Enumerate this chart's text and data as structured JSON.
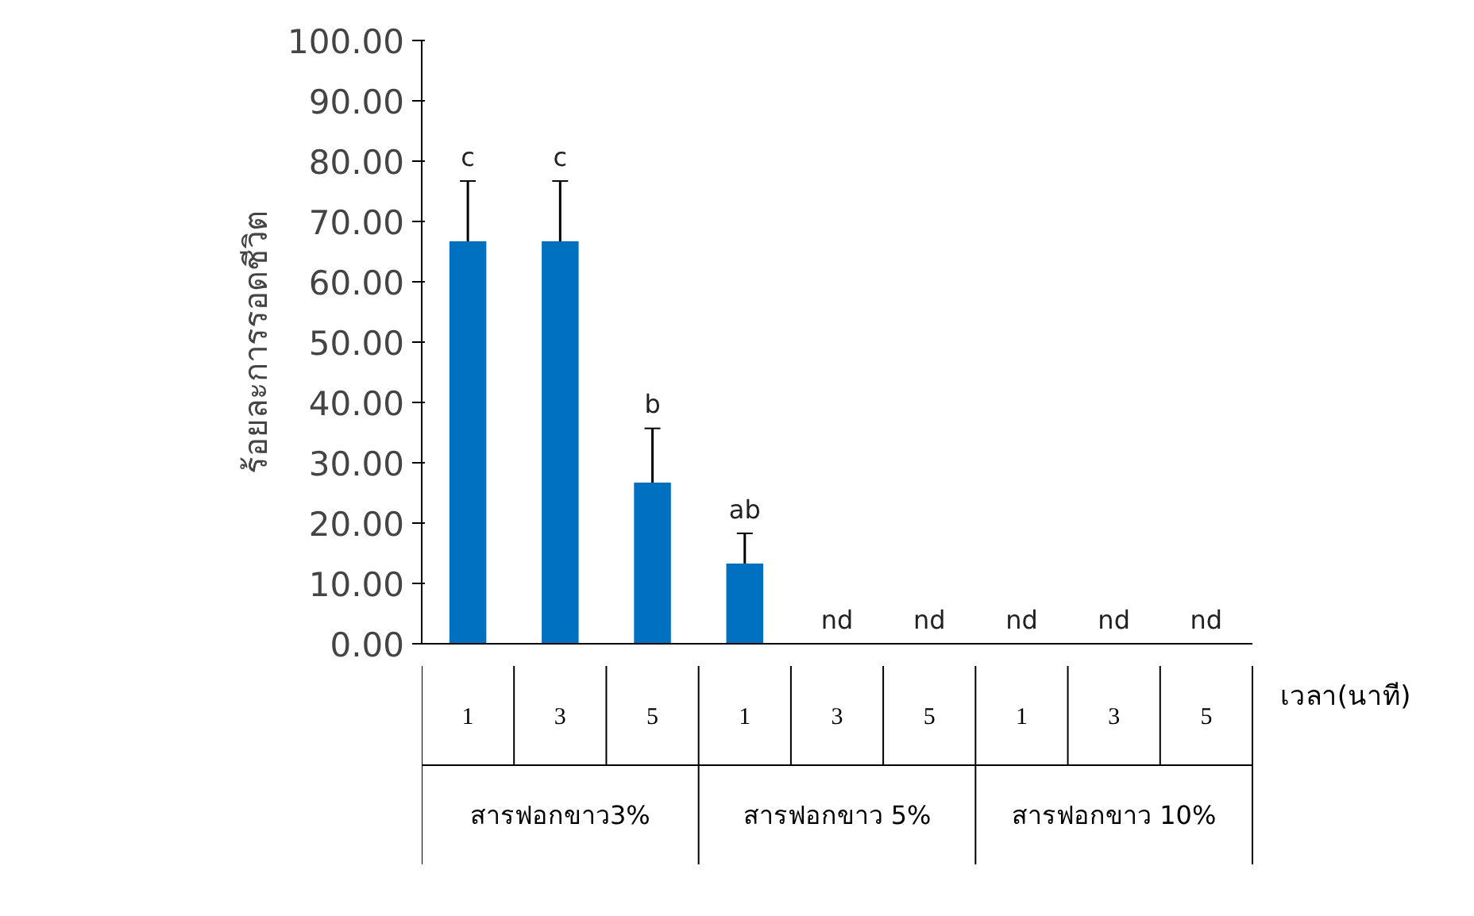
{
  "chart_data": {
    "type": "bar",
    "xlabel": "เวลา(นาที)",
    "ylabel": "ร้อยละการรอดชีวิต",
    "categories": [
      "1",
      "3",
      "5",
      "1",
      "3",
      "5",
      "1",
      "3",
      "5"
    ],
    "annotations": [
      "สารฟอกขาว3%",
      "สารฟอกขาว 5%",
      "สารฟอกขาว 10%"
    ],
    "series": [
      {
        "color": "#0070c0",
        "values": [
          66.7,
          66.7,
          26.7,
          13.3,
          null,
          null,
          null,
          null,
          null
        ],
        "errors": [
          10,
          10,
          9,
          5,
          null,
          null,
          null,
          null,
          null
        ],
        "value_labels": [
          "c",
          "c",
          "b",
          "ab",
          "nd",
          "nd",
          "nd",
          "nd",
          "nd"
        ]
      }
    ],
    "ylim": [
      0,
      100
    ],
    "yticks": [
      {
        "value": 0,
        "label": "0.00"
      },
      {
        "value": 10,
        "label": "10.00"
      },
      {
        "value": 20,
        "label": "20.00"
      },
      {
        "value": 30,
        "label": "30.00"
      },
      {
        "value": 40,
        "label": "40.00"
      },
      {
        "value": 50,
        "label": "50.00"
      },
      {
        "value": 60,
        "label": "60.00"
      },
      {
        "value": 70,
        "label": "70.00"
      },
      {
        "value": 80,
        "label": "80.00"
      },
      {
        "value": 90,
        "label": "90.00"
      },
      {
        "value": 100,
        "label": "100.00"
      }
    ],
    "grid": false
  }
}
